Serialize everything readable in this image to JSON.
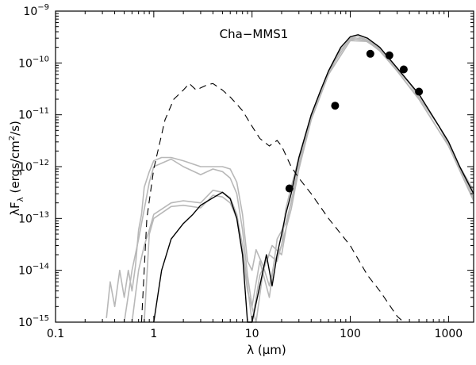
{
  "chart_data": {
    "type": "line",
    "title": "Cha−MMS1",
    "xlabel": {
      "symbol": "λ",
      "unit": "(μm)"
    },
    "ylabel": {
      "base": "λF",
      "sub": "λ",
      "unit_pre": "(ergs/cm",
      "unit_exp": "2",
      "unit_post": "/s)"
    },
    "x_scale": "log",
    "y_scale": "log",
    "xlim": [
      0.1,
      1800
    ],
    "ylim": [
      1e-15,
      1e-09
    ],
    "x_ticks": [
      {
        "value": 0.1,
        "label": "0.1"
      },
      {
        "value": 1,
        "label": "1"
      },
      {
        "value": 10,
        "label": "10"
      },
      {
        "value": 100,
        "label": "100"
      },
      {
        "value": 1000,
        "label": "1000"
      }
    ],
    "y_ticks": [
      {
        "value": 1e-15,
        "mant": "10",
        "exp": "−15"
      },
      {
        "value": 1e-14,
        "mant": "10",
        "exp": "−14"
      },
      {
        "value": 1e-13,
        "mant": "10",
        "exp": "−13"
      },
      {
        "value": 1e-12,
        "mant": "10",
        "exp": "−12"
      },
      {
        "value": 1e-11,
        "mant": "10",
        "exp": "−11"
      },
      {
        "value": 1e-10,
        "mant": "10",
        "exp": "−10"
      },
      {
        "value": 1e-09,
        "mant": "10",
        "exp": "−9"
      }
    ],
    "colors": {
      "best_fit": "#000000",
      "model_fits": "#b8b8b8",
      "stellar": "#000000",
      "observed": "#000000"
    },
    "series": [
      {
        "name": "model fits (grey)",
        "style": "grey",
        "points": [
          [
            0.33,
            1.2e-15
          ],
          [
            0.36,
            6e-15
          ],
          [
            0.4,
            2e-15
          ],
          [
            0.45,
            1e-14
          ],
          [
            0.5,
            3e-15
          ],
          [
            0.55,
            1e-14
          ],
          [
            0.6,
            4e-15
          ],
          [
            0.65,
            1.2e-14
          ],
          [
            0.7,
            6e-14
          ],
          [
            0.75,
            1.2e-13
          ],
          [
            0.8,
            4e-13
          ],
          [
            0.9,
            8e-13
          ],
          [
            1.0,
            1.3e-12
          ],
          [
            1.2,
            1.5e-12
          ],
          [
            1.5,
            1.5e-12
          ],
          [
            2.0,
            1.3e-12
          ],
          [
            3.0,
            1e-12
          ],
          [
            4.0,
            1e-12
          ],
          [
            5.0,
            1e-12
          ],
          [
            6.0,
            9e-13
          ],
          [
            7.0,
            5e-13
          ],
          [
            8.0,
            1.2e-13
          ],
          [
            9.0,
            1.5e-14
          ],
          [
            10,
            1e-14
          ],
          [
            11,
            2.5e-14
          ],
          [
            13,
            1.2e-14
          ],
          [
            15,
            5e-15
          ],
          [
            17,
            1.5e-14
          ],
          [
            20,
            3e-14
          ],
          [
            22,
            1.5e-13
          ],
          [
            25,
            4e-13
          ],
          [
            30,
            1.5e-12
          ],
          [
            40,
            1e-11
          ],
          [
            60,
            7e-11
          ],
          [
            80,
            2e-10
          ],
          [
            100,
            3e-10
          ],
          [
            120,
            3.2e-10
          ],
          [
            150,
            2.8e-10
          ],
          [
            200,
            1.9e-10
          ],
          [
            300,
            8e-11
          ],
          [
            500,
            2.5e-11
          ],
          [
            800,
            6e-12
          ],
          [
            1000,
            3e-12
          ],
          [
            1300,
            1e-12
          ],
          [
            1800,
            3.5e-13
          ]
        ]
      },
      {
        "name": "model fit 2 (grey)",
        "style": "grey",
        "points": [
          [
            0.5,
            1e-15
          ],
          [
            0.6,
            1e-14
          ],
          [
            0.7,
            4e-14
          ],
          [
            0.8,
            1.5e-13
          ],
          [
            0.9,
            5e-13
          ],
          [
            1.0,
            1e-12
          ],
          [
            1.5,
            1.4e-12
          ],
          [
            2.0,
            1e-12
          ],
          [
            3.0,
            7e-13
          ],
          [
            4.0,
            9e-13
          ],
          [
            5.0,
            8e-13
          ],
          [
            6.0,
            6e-13
          ],
          [
            7.0,
            3e-13
          ],
          [
            8.0,
            6e-14
          ],
          [
            9.0,
            8e-15
          ],
          [
            10,
            2e-15
          ],
          [
            12,
            1.5e-14
          ],
          [
            15,
            3e-15
          ],
          [
            18,
            4e-14
          ],
          [
            22,
            8e-14
          ],
          [
            25,
            2e-13
          ],
          [
            30,
            1.2e-12
          ],
          [
            40,
            9e-12
          ],
          [
            60,
            6e-11
          ],
          [
            80,
            1.8e-10
          ],
          [
            100,
            2.8e-10
          ],
          [
            130,
            3e-10
          ],
          [
            200,
            1.8e-10
          ],
          [
            300,
            7e-11
          ],
          [
            500,
            2e-11
          ],
          [
            1000,
            2.5e-12
          ],
          [
            1400,
            7e-13
          ],
          [
            1800,
            2.5e-13
          ]
        ]
      },
      {
        "name": "model fit 3 (grey)",
        "style": "grey",
        "points": [
          [
            0.6,
            1e-15
          ],
          [
            0.7,
            1e-14
          ],
          [
            0.8,
            3e-14
          ],
          [
            0.9,
            6e-14
          ],
          [
            1.0,
            1.2e-13
          ],
          [
            1.5,
            2e-13
          ],
          [
            2.0,
            2.2e-13
          ],
          [
            3.0,
            2e-13
          ],
          [
            4.0,
            3.5e-13
          ],
          [
            5.0,
            3.2e-13
          ],
          [
            6.0,
            2.5e-13
          ],
          [
            7.0,
            1.2e-13
          ],
          [
            8.0,
            3e-14
          ],
          [
            9.0,
            5e-15
          ],
          [
            10,
            1e-15
          ],
          [
            12,
            8e-15
          ],
          [
            15,
            2e-14
          ],
          [
            18,
            1.5e-14
          ],
          [
            22,
            6e-14
          ],
          [
            25,
            1.5e-13
          ],
          [
            30,
            9e-13
          ],
          [
            40,
            8e-12
          ],
          [
            60,
            6e-11
          ],
          [
            100,
            2.7e-10
          ],
          [
            150,
            2.6e-10
          ],
          [
            200,
            1.7e-10
          ],
          [
            300,
            7e-11
          ],
          [
            500,
            2e-11
          ],
          [
            1000,
            2.5e-12
          ],
          [
            1800,
            2.2e-13
          ]
        ]
      },
      {
        "name": "model fit 4 (grey)",
        "style": "grey",
        "points": [
          [
            0.8,
            1e-15
          ],
          [
            0.9,
            5e-14
          ],
          [
            1.0,
            1e-13
          ],
          [
            1.5,
            1.7e-13
          ],
          [
            2.0,
            1.8e-13
          ],
          [
            3.0,
            1.6e-13
          ],
          [
            4.0,
            2.8e-13
          ],
          [
            5.0,
            2.6e-13
          ],
          [
            6.0,
            2e-13
          ],
          [
            7.0,
            1e-13
          ],
          [
            8.0,
            2e-14
          ],
          [
            9.0,
            4e-15
          ],
          [
            11,
            1e-15
          ],
          [
            13,
            1e-14
          ],
          [
            16,
            3e-14
          ],
          [
            20,
            2e-14
          ],
          [
            24,
            1.5e-13
          ],
          [
            30,
            1e-12
          ],
          [
            40,
            1e-11
          ],
          [
            60,
            7e-11
          ],
          [
            100,
            3e-10
          ],
          [
            150,
            2.7e-10
          ],
          [
            200,
            1.8e-10
          ],
          [
            400,
            4e-11
          ],
          [
            800,
            6e-12
          ],
          [
            1800,
            3e-13
          ]
        ]
      },
      {
        "name": "best fit (black)",
        "style": "black",
        "points": [
          [
            1.0,
            1e-15
          ],
          [
            1.2,
            1e-14
          ],
          [
            1.5,
            4e-14
          ],
          [
            2.0,
            8e-14
          ],
          [
            2.5,
            1.2e-13
          ],
          [
            3.0,
            1.8e-13
          ],
          [
            4.0,
            2.5e-13
          ],
          [
            5.0,
            3.2e-13
          ],
          [
            6.0,
            2.4e-13
          ],
          [
            7.0,
            1e-13
          ],
          [
            8.0,
            2e-14
          ],
          [
            9.0,
            1e-15
          ],
          [
            10,
            1e-15
          ],
          [
            12,
            5e-15
          ],
          [
            14,
            2e-14
          ],
          [
            16,
            5e-15
          ],
          [
            18,
            2e-14
          ],
          [
            20,
            5e-14
          ],
          [
            22,
            1.2e-13
          ],
          [
            25,
            3e-13
          ],
          [
            30,
            1.5e-12
          ],
          [
            40,
            1e-11
          ],
          [
            50,
            3e-11
          ],
          [
            60,
            7e-11
          ],
          [
            80,
            2e-10
          ],
          [
            100,
            3.2e-10
          ],
          [
            120,
            3.5e-10
          ],
          [
            150,
            3e-10
          ],
          [
            200,
            2e-10
          ],
          [
            300,
            8e-11
          ],
          [
            500,
            2.5e-11
          ],
          [
            800,
            6e-12
          ],
          [
            1000,
            3e-12
          ],
          [
            1300,
            1e-12
          ],
          [
            1800,
            3e-13
          ]
        ]
      },
      {
        "name": "stellar photosphere (dashed)",
        "style": "dashed",
        "points": [
          [
            0.75,
            1e-15
          ],
          [
            0.85,
            1e-13
          ],
          [
            1.0,
            9e-13
          ],
          [
            1.3,
            8e-12
          ],
          [
            1.6,
            2e-11
          ],
          [
            2.0,
            3e-11
          ],
          [
            2.3,
            4e-11
          ],
          [
            2.7,
            3e-11
          ],
          [
            3.0,
            3.3e-11
          ],
          [
            3.5,
            3.8e-11
          ],
          [
            4.0,
            4e-11
          ],
          [
            5.0,
            3e-11
          ],
          [
            6.0,
            2.2e-11
          ],
          [
            7.0,
            1.6e-11
          ],
          [
            8.0,
            1.2e-11
          ],
          [
            10,
            6e-12
          ],
          [
            12,
            3.5e-12
          ],
          [
            15,
            2.5e-12
          ],
          [
            18,
            3.2e-12
          ],
          [
            20,
            2.5e-12
          ],
          [
            25,
            1e-12
          ],
          [
            30,
            6e-13
          ],
          [
            40,
            3e-13
          ],
          [
            60,
            1e-13
          ],
          [
            100,
            3e-14
          ],
          [
            150,
            8e-15
          ],
          [
            200,
            4e-15
          ],
          [
            300,
            1.3e-15
          ],
          [
            350,
            1e-15
          ]
        ]
      }
    ],
    "observed_points": [
      {
        "x": 24,
        "y": 3.8e-13
      },
      {
        "x": 70,
        "y": 1.5e-11
      },
      {
        "x": 160,
        "y": 1.5e-10
      },
      {
        "x": 250,
        "y": 1.4e-10
      },
      {
        "x": 350,
        "y": 7.5e-11
      },
      {
        "x": 500,
        "y": 2.8e-11
      }
    ]
  }
}
